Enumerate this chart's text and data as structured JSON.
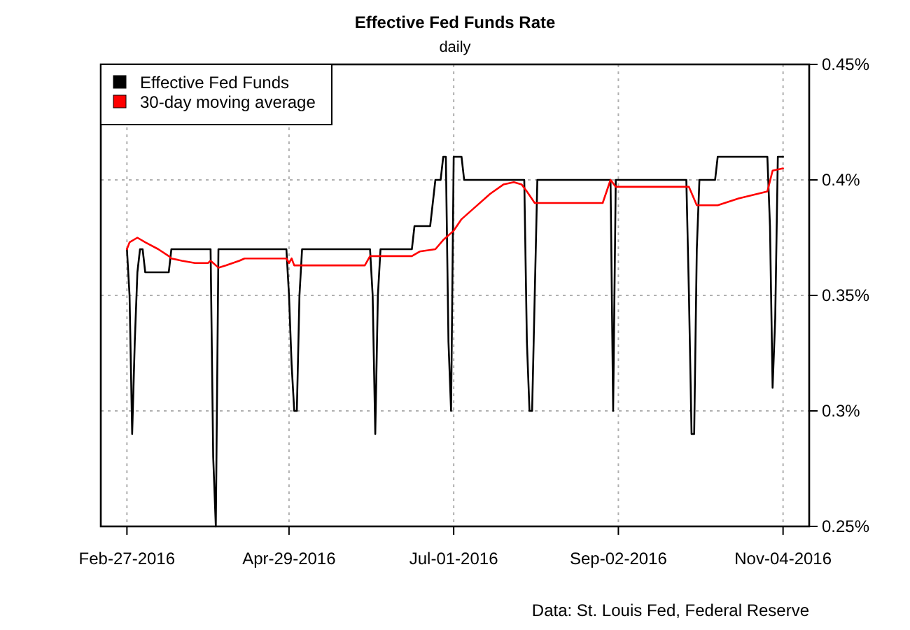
{
  "chart_data": {
    "type": "line",
    "title": "Effective Fed Funds Rate",
    "subtitle": "daily",
    "xlim": [
      "2016-02-17",
      "2016-11-14"
    ],
    "xticks": [
      {
        "value": "2016-02-27",
        "label": "Feb-27-2016"
      },
      {
        "value": "2016-04-29",
        "label": "Apr-29-2016"
      },
      {
        "value": "2016-07-01",
        "label": "Jul-01-2016"
      },
      {
        "value": "2016-09-02",
        "label": "Sep-02-2016"
      },
      {
        "value": "2016-11-04",
        "label": "Nov-04-2016"
      }
    ],
    "ylim": [
      0.25,
      0.45
    ],
    "yticks": [
      {
        "value": 0.25,
        "label": "0.25%"
      },
      {
        "value": 0.3,
        "label": "0.3%"
      },
      {
        "value": 0.35,
        "label": "0.35%"
      },
      {
        "value": 0.4,
        "label": "0.4%"
      },
      {
        "value": 0.45,
        "label": "0.45%"
      }
    ],
    "grid": true,
    "legend": "top left",
    "annotations": [
      "Data: St. Louis Fed, Federal Reserve"
    ],
    "series": [
      {
        "name": "Effective Fed Funds",
        "color": "#000000",
        "x": [
          "2016-02-27",
          "2016-02-28",
          "2016-02-29",
          "2016-03-01",
          "2016-03-02",
          "2016-03-03",
          "2016-03-04",
          "2016-03-05",
          "2016-03-14",
          "2016-03-15",
          "2016-03-30",
          "2016-03-31",
          "2016-04-01",
          "2016-04-02",
          "2016-04-28",
          "2016-04-29",
          "2016-04-30",
          "2016-05-01",
          "2016-05-02",
          "2016-05-03",
          "2016-05-04",
          "2016-05-30",
          "2016-05-31",
          "2016-06-01",
          "2016-06-02",
          "2016-06-03",
          "2016-06-15",
          "2016-06-16",
          "2016-06-22",
          "2016-06-23",
          "2016-06-24",
          "2016-06-26",
          "2016-06-27",
          "2016-06-28",
          "2016-06-29",
          "2016-06-30",
          "2016-07-01",
          "2016-07-04",
          "2016-07-05",
          "2016-07-28",
          "2016-07-29",
          "2016-07-30",
          "2016-07-31",
          "2016-08-01",
          "2016-08-02",
          "2016-08-30",
          "2016-08-31",
          "2016-09-01",
          "2016-09-28",
          "2016-09-29",
          "2016-09-30",
          "2016-10-01",
          "2016-10-02",
          "2016-10-03",
          "2016-10-09",
          "2016-10-10",
          "2016-10-29",
          "2016-10-30",
          "2016-10-31",
          "2016-11-01",
          "2016-11-02",
          "2016-11-04"
        ],
        "values": [
          0.37,
          0.35,
          0.29,
          0.33,
          0.36,
          0.37,
          0.37,
          0.36,
          0.36,
          0.37,
          0.37,
          0.28,
          0.25,
          0.37,
          0.37,
          0.35,
          0.32,
          0.3,
          0.3,
          0.35,
          0.37,
          0.37,
          0.35,
          0.29,
          0.35,
          0.37,
          0.37,
          0.38,
          0.38,
          0.39,
          0.4,
          0.4,
          0.41,
          0.41,
          0.33,
          0.3,
          0.41,
          0.41,
          0.4,
          0.4,
          0.33,
          0.3,
          0.3,
          0.35,
          0.4,
          0.4,
          0.3,
          0.4,
          0.4,
          0.35,
          0.29,
          0.29,
          0.37,
          0.4,
          0.4,
          0.41,
          0.41,
          0.38,
          0.31,
          0.34,
          0.41,
          0.41
        ]
      },
      {
        "name": "30-day moving average",
        "color": "#ff0000",
        "x": [
          "2016-02-27",
          "2016-02-28",
          "2016-03-02",
          "2016-03-05",
          "2016-03-10",
          "2016-03-14",
          "2016-03-15",
          "2016-03-19",
          "2016-03-24",
          "2016-03-29",
          "2016-03-30",
          "2016-03-31",
          "2016-04-02",
          "2016-04-05",
          "2016-04-10",
          "2016-04-12",
          "2016-04-28",
          "2016-04-29",
          "2016-04-30",
          "2016-05-01",
          "2016-05-28",
          "2016-05-30",
          "2016-06-15",
          "2016-06-18",
          "2016-06-24",
          "2016-06-27",
          "2016-07-01",
          "2016-07-04",
          "2016-07-08",
          "2016-07-15",
          "2016-07-20",
          "2016-07-24",
          "2016-07-27",
          "2016-07-29",
          "2016-08-01",
          "2016-08-27",
          "2016-08-30",
          "2016-09-01",
          "2016-09-29",
          "2016-10-02",
          "2016-10-10",
          "2016-10-18",
          "2016-10-29",
          "2016-10-31",
          "2016-11-04"
        ],
        "values": [
          0.37,
          0.373,
          0.375,
          0.373,
          0.37,
          0.367,
          0.366,
          0.365,
          0.364,
          0.364,
          0.365,
          0.364,
          0.362,
          0.363,
          0.365,
          0.366,
          0.366,
          0.364,
          0.366,
          0.363,
          0.363,
          0.367,
          0.367,
          0.369,
          0.37,
          0.374,
          0.378,
          0.383,
          0.387,
          0.394,
          0.398,
          0.399,
          0.398,
          0.395,
          0.39,
          0.39,
          0.4,
          0.397,
          0.397,
          0.389,
          0.389,
          0.392,
          0.395,
          0.404,
          0.405
        ]
      }
    ]
  }
}
